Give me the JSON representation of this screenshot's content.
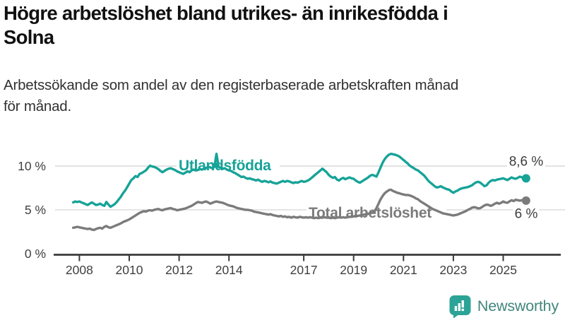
{
  "header": {
    "title_lines": [
      "Högre arbetslöshet bland utrikes- än inrikesfödda i",
      "Solna"
    ],
    "subtitle_lines": [
      "Arbetssökande som andel av den registerbaserade arbetskraften månad",
      "för månad."
    ]
  },
  "branding": {
    "logo_text": "Newsworthy",
    "logo_icon": "bar-chart-speech-bubble-icon"
  },
  "colors": {
    "foreign_born": "#17a398",
    "total": "#7b7b7b",
    "grid": "#d9d9d9",
    "axis": "#3a3a3a",
    "tick_label": "#3f3f3f",
    "end_label": "#3d3d3d",
    "logo_bubble": "#2ba396",
    "logo_text": "#40867c"
  },
  "chart_data": {
    "type": "line",
    "title": "Högre arbetslöshet bland utrikes- än inrikesfödda i Solna",
    "subtitle": "Arbetssökande som andel av den registerbaserade arbetskraften månad för månad.",
    "x_unit": "decimal_year_monthly",
    "start_decimal_year": 2007.75,
    "step_years": 0.0833333,
    "x_ticks": [
      2008,
      2010,
      2012,
      2014,
      2017,
      2019,
      2021,
      2023,
      2025
    ],
    "y_ticks": [
      {
        "value": 10,
        "label": "10 %"
      },
      {
        "value": 5,
        "label": "5 %"
      },
      {
        "value": 0,
        "label": "0 %"
      }
    ],
    "ylim": [
      0,
      12.5
    ],
    "grid": "horizontal",
    "legend_position": "inline-labels",
    "series": [
      {
        "name": "Utlandsfödda",
        "label": "Utlandsfödda",
        "end_label": "8,6 %",
        "end_value": 8.6,
        "color": "#17a398",
        "values": [
          5.85,
          5.95,
          5.9,
          5.95,
          5.85,
          5.75,
          5.65,
          5.55,
          5.7,
          5.85,
          5.7,
          5.55,
          5.6,
          5.7,
          5.55,
          5.45,
          5.9,
          5.6,
          5.35,
          5.5,
          5.65,
          5.9,
          6.2,
          6.5,
          6.9,
          7.2,
          7.6,
          8.0,
          8.4,
          8.6,
          8.85,
          8.75,
          9.1,
          9.2,
          9.35,
          9.5,
          9.8,
          10.05,
          9.95,
          9.9,
          9.8,
          9.65,
          9.45,
          9.3,
          9.45,
          9.6,
          9.7,
          9.75,
          9.65,
          9.55,
          9.4,
          9.3,
          9.2,
          9.1,
          9.25,
          9.4,
          9.3,
          9.5,
          9.6,
          9.5,
          9.55,
          9.65,
          9.6,
          9.7,
          9.8,
          9.9,
          9.85,
          9.75,
          9.9,
          11.4,
          9.9,
          9.8,
          9.7,
          9.75,
          9.6,
          9.5,
          9.45,
          9.3,
          9.2,
          9.05,
          8.9,
          8.75,
          8.8,
          8.65,
          8.55,
          8.6,
          8.5,
          8.45,
          8.35,
          8.45,
          8.3,
          8.2,
          8.3,
          8.25,
          8.15,
          8.25,
          8.1,
          8.05,
          8.0,
          8.1,
          8.2,
          8.3,
          8.2,
          8.3,
          8.25,
          8.15,
          8.05,
          8.15,
          8.1,
          8.2,
          8.3,
          8.2,
          8.25,
          8.35,
          8.5,
          8.7,
          8.9,
          9.1,
          9.3,
          9.5,
          9.7,
          9.5,
          9.3,
          9.0,
          8.8,
          8.65,
          8.75,
          8.45,
          8.35,
          8.55,
          8.65,
          8.5,
          8.6,
          8.7,
          8.6,
          8.55,
          8.35,
          8.2,
          8.1,
          8.25,
          8.4,
          8.55,
          8.7,
          8.9,
          9.0,
          8.9,
          8.8,
          9.3,
          9.85,
          10.4,
          10.8,
          11.1,
          11.3,
          11.4,
          11.35,
          11.3,
          11.2,
          11.1,
          10.9,
          10.7,
          10.5,
          10.3,
          10.05,
          9.9,
          9.75,
          9.6,
          9.5,
          9.3,
          9.1,
          8.9,
          8.6,
          8.3,
          8.1,
          7.9,
          7.7,
          7.55,
          7.6,
          7.7,
          7.55,
          7.45,
          7.35,
          7.3,
          7.1,
          6.95,
          7.1,
          7.2,
          7.35,
          7.45,
          7.5,
          7.55,
          7.6,
          7.7,
          7.8,
          8.0,
          8.15,
          8.2,
          8.1,
          7.9,
          7.7,
          7.8,
          8.1,
          8.3,
          8.4,
          8.35,
          8.45,
          8.5,
          8.55,
          8.6,
          8.5,
          8.4,
          8.55,
          8.7,
          8.6,
          8.55,
          8.65,
          8.8,
          8.7,
          8.6,
          8.6
        ]
      },
      {
        "name": "Total arbetslöshet",
        "label": "Total arbetslöshet",
        "end_label": "6 %",
        "end_value": 6.0,
        "color": "#7b7b7b",
        "values": [
          2.95,
          3.0,
          3.05,
          3.0,
          2.95,
          2.9,
          2.85,
          2.8,
          2.85,
          2.75,
          2.7,
          2.8,
          2.9,
          2.95,
          2.85,
          3.05,
          3.15,
          3.0,
          2.95,
          3.05,
          3.15,
          3.25,
          3.35,
          3.45,
          3.6,
          3.7,
          3.8,
          3.9,
          4.05,
          4.2,
          4.35,
          4.5,
          4.65,
          4.75,
          4.85,
          4.8,
          4.9,
          4.95,
          4.9,
          5.0,
          5.05,
          5.1,
          5.0,
          4.95,
          5.05,
          5.1,
          5.15,
          5.2,
          5.1,
          5.05,
          4.95,
          5.0,
          5.05,
          5.1,
          5.15,
          5.25,
          5.35,
          5.45,
          5.6,
          5.75,
          5.9,
          5.85,
          5.8,
          5.9,
          5.95,
          5.85,
          5.7,
          5.8,
          5.9,
          5.95,
          5.9,
          5.85,
          5.8,
          5.7,
          5.6,
          5.5,
          5.45,
          5.4,
          5.3,
          5.2,
          5.15,
          5.1,
          5.05,
          5.0,
          5.0,
          4.95,
          4.9,
          4.8,
          4.75,
          4.7,
          4.65,
          4.6,
          4.55,
          4.5,
          4.45,
          4.5,
          4.4,
          4.35,
          4.3,
          4.25,
          4.3,
          4.2,
          4.25,
          4.15,
          4.2,
          4.1,
          4.2,
          4.15,
          4.1,
          4.2,
          4.15,
          4.1,
          4.15,
          4.1,
          4.15,
          4.1,
          4.05,
          4.1,
          4.05,
          4.1,
          4.1,
          4.15,
          4.1,
          4.1,
          4.05,
          4.1,
          4.05,
          4.1,
          4.15,
          4.1,
          4.15,
          4.1,
          4.15,
          4.2,
          4.2,
          4.25,
          4.3,
          4.3,
          4.35,
          4.4,
          4.45,
          4.5,
          4.55,
          4.6,
          4.7,
          4.8,
          5.2,
          5.7,
          6.2,
          6.6,
          6.9,
          7.1,
          7.25,
          7.3,
          7.15,
          7.05,
          6.95,
          6.9,
          6.8,
          6.75,
          6.7,
          6.7,
          6.65,
          6.55,
          6.45,
          6.3,
          6.2,
          6.0,
          5.85,
          5.7,
          5.55,
          5.4,
          5.25,
          5.1,
          5.0,
          4.9,
          4.8,
          4.7,
          4.6,
          4.55,
          4.5,
          4.45,
          4.4,
          4.35,
          4.4,
          4.45,
          4.55,
          4.65,
          4.75,
          4.85,
          5.0,
          5.1,
          5.25,
          5.3,
          5.25,
          5.15,
          5.2,
          5.35,
          5.5,
          5.6,
          5.55,
          5.45,
          5.55,
          5.7,
          5.8,
          5.7,
          5.8,
          5.95,
          5.85,
          5.8,
          5.95,
          6.1,
          6.0,
          6.15,
          6.1,
          6.05,
          6.1,
          6.1,
          6.05
        ]
      }
    ]
  }
}
